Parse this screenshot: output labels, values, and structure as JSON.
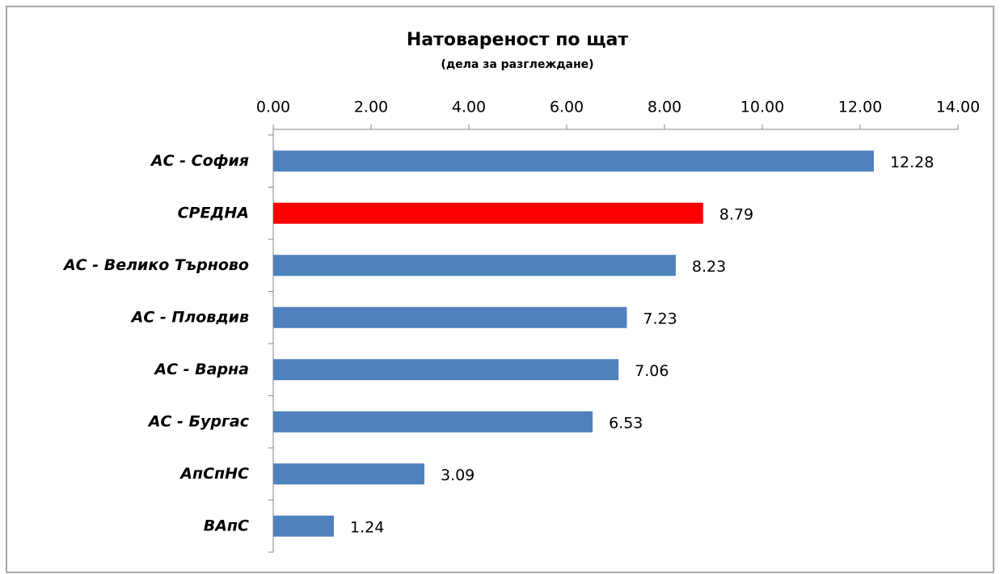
{
  "chart_data": {
    "type": "bar",
    "orientation": "horizontal",
    "title": "Натовареност по щат",
    "subtitle": "(дела за разглеждане)",
    "categories": [
      "АС - София",
      "СРЕДНА",
      "АС - Велико Търново",
      "АС - Пловдив",
      "АС - Варна",
      "АС - Бургас",
      "АпСпНС",
      "ВАпС"
    ],
    "values": [
      12.28,
      8.79,
      8.23,
      7.23,
      7.06,
      6.53,
      3.09,
      1.24
    ],
    "colors": [
      "#4f81bd",
      "#ff0000",
      "#4f81bd",
      "#4f81bd",
      "#4f81bd",
      "#4f81bd",
      "#4f81bd",
      "#4f81bd"
    ],
    "xlim": [
      0,
      14
    ],
    "xticks": [
      {
        "value": 0,
        "label": "0.00"
      },
      {
        "value": 2,
        "label": "2.00"
      },
      {
        "value": 4,
        "label": "4.00"
      },
      {
        "value": 6,
        "label": "6.00"
      },
      {
        "value": 8,
        "label": "8.00"
      },
      {
        "value": 10,
        "label": "10.00"
      },
      {
        "value": 12,
        "label": "12.00"
      },
      {
        "value": 14,
        "label": "14.00"
      }
    ],
    "axis_position": "top",
    "grid": false
  }
}
